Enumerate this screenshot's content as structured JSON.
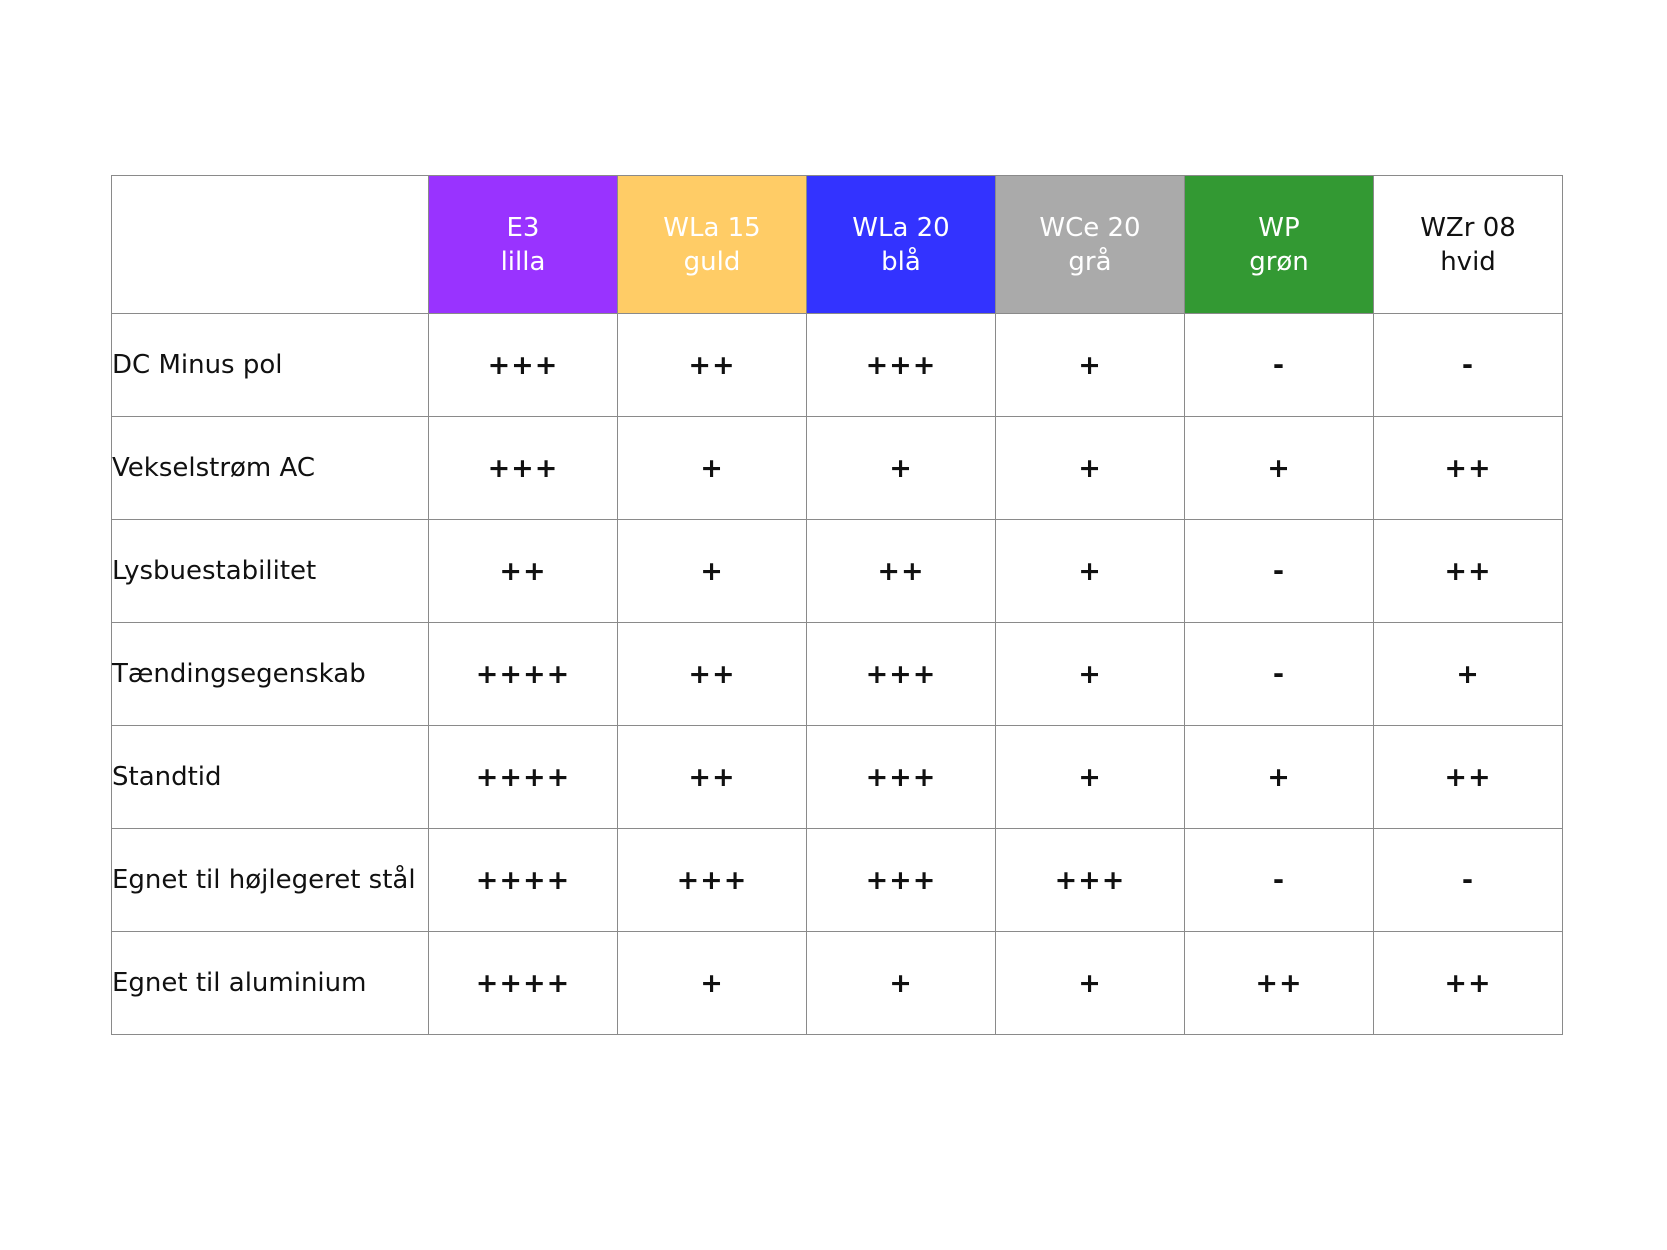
{
  "columns": [
    {
      "line1": "E3",
      "line2": "lilla",
      "bg": "#9933ff",
      "fg": "#ffffff"
    },
    {
      "line1": "WLa 15",
      "line2": "guld",
      "bg": "#ffcc66",
      "fg": "#ffffff"
    },
    {
      "line1": "WLa 20",
      "line2": "blå",
      "bg": "#3333ff",
      "fg": "#ffffff"
    },
    {
      "line1": "WCe 20",
      "line2": "grå",
      "bg": "#aaaaaa",
      "fg": "#ffffff"
    },
    {
      "line1": "WP",
      "line2": "grøn",
      "bg": "#339933",
      "fg": "#ffffff"
    },
    {
      "line1": "WZr 08",
      "line2": "hvid",
      "bg": "#ffffff",
      "fg": "#111111"
    }
  ],
  "rows": [
    {
      "label": "DC Minus pol",
      "values": [
        "+++",
        "++",
        "+++",
        "+",
        "-",
        "-"
      ]
    },
    {
      "label": "Vekselstrøm AC",
      "values": [
        "+++",
        "+",
        "+",
        "+",
        "+",
        "++"
      ]
    },
    {
      "label": "Lysbuestabilitet",
      "values": [
        "++",
        "+",
        "++",
        "+",
        "-",
        "++"
      ]
    },
    {
      "label": "Tændingsegenskab",
      "values": [
        "++++",
        "++",
        "+++",
        "+",
        "-",
        "+"
      ]
    },
    {
      "label": "Standtid",
      "values": [
        "++++",
        "++",
        "+++",
        "+",
        "+",
        "++"
      ]
    },
    {
      "label": "Egnet til højlegeret stål",
      "values": [
        "++++",
        "+++",
        "+++",
        "+++",
        "-",
        "-"
      ]
    },
    {
      "label": "Egnet til aluminium",
      "values": [
        "++++",
        "+",
        "+",
        "+",
        "++",
        "++"
      ]
    }
  ]
}
